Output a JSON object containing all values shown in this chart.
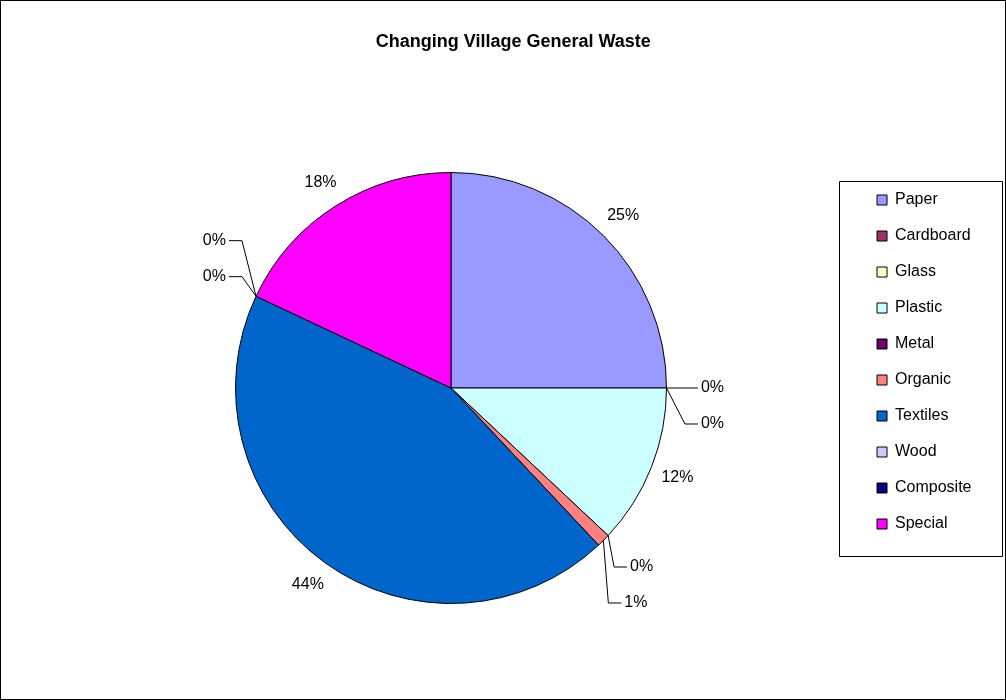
{
  "chart_data": {
    "type": "pie",
    "title": "Changing Village General Waste",
    "categories": [
      "Paper",
      "Cardboard",
      "Glass",
      "Plastic",
      "Metal",
      "Organic",
      "Textiles",
      "Wood",
      "Composite",
      "Special"
    ],
    "values": [
      25,
      0,
      0,
      12,
      0,
      1,
      44,
      0,
      0,
      18
    ],
    "colors": [
      "#9999ff",
      "#993366",
      "#ffffcc",
      "#ccffff",
      "#660066",
      "#ff8080",
      "#0066cc",
      "#ccccff",
      "#000080",
      "#ff00ff"
    ],
    "value_labels": [
      "25%",
      "0%",
      "0%",
      "12%",
      "0%",
      "1%",
      "44%",
      "0%",
      "0%",
      "18%"
    ],
    "legend": "right"
  }
}
